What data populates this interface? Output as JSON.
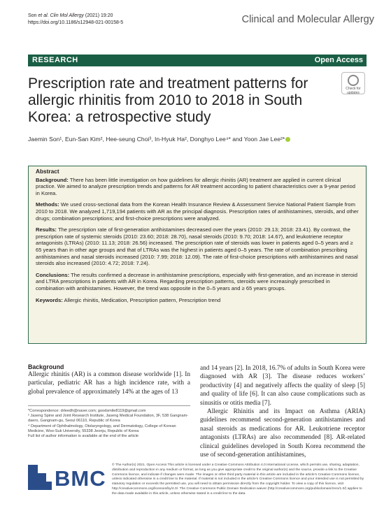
{
  "header": {
    "citation_line1_prefix": "Son ",
    "citation_line1_journal": "et al. Clin Mol Allergy",
    "citation_line1_year": "(2021) 19:20",
    "citation_line2": "https://doi.org/10.1186/s12948-021-00158-5",
    "journal_name": "Clinical and Molecular Allergy"
  },
  "bar": {
    "left": "RESEARCH",
    "right": "Open Access"
  },
  "badge": {
    "line1": "Check for",
    "line2": "updates"
  },
  "title": "Prescription rate and treatment patterns for allergic rhinitis from 2010 to 2018 in South Korea: a retrospective study",
  "authors": {
    "text": "Jaemin Son¹, Eun-San Kim², Hee-seung Choi³, In-Hyuk Ha², Donghyo Lee⁴* and Yoon Jae Lee²*"
  },
  "abstract": {
    "heading": "Abstract",
    "sections": [
      {
        "label": "Background:",
        "text": " There has been little investigation on how guidelines for allergic rhinitis (AR) treatment are applied in current clinical practice. We aimed to analyze prescription trends and patterns for AR treatment according to patient characteristics over a 9-year period in Korea."
      },
      {
        "label": "Methods:",
        "text": " We used cross-sectional data from the Korean Health Insurance Review & Assessment Service National Patient Sample from 2010 to 2018. We analyzed 1,719,194 patients with AR as the principal diagnosis. Prescription rates of antihistamines, steroids, and other drugs; combination prescriptions; and first-choice prescriptions were analyzed."
      },
      {
        "label": "Results:",
        "text": " The prescription rate of first-generation antihistamines decreased over the years (2010: 29.13; 2018: 23.41). By contrast, the prescription rate of systemic steroids (2010: 23.60; 2018: 28.70), nasal steroids (2010: 9.70; 2018: 14.67), and leukotriene receptor antagonists (LTRAs) (2010: 11.13; 2018: 26.56) increased. The prescription rate of steroids was lower in patients aged 0–5 years and ≥ 65 years than in other age groups and that of LTRAs was the highest in patients aged 0–5 years. The rate of combination prescribing antihistamines and nasal steroids increased (2010: 7.99; 2018: 12.09). The rate of first-choice prescriptions with antihistamines and nasal steroids also increased (2010: 4.72; 2018: 7.24)."
      },
      {
        "label": "Conclusions:",
        "text": " The results confirmed a decrease in antihistamine prescriptions, especially with first-generation, and an increase in steroid and LTRA prescriptions in patients with AR in Korea. Regarding prescription patterns, steroids were increasingly prescribed in combination with antihistamines. However, the trend was opposite in the 0–5 years and ≥ 65 years groups."
      },
      {
        "label": "Keywords:",
        "text": " Allergic rhinitis, Medication, Prescription pattern, Prescription trend"
      }
    ]
  },
  "body": {
    "background_heading": "Background",
    "col1_text": "Allergic rhinitis (AR) is a common disease worldwide [1]. In particular, pediatric AR has a high incidence rate, with a global prevalence of approximately 14% at the ages of 13",
    "col2_p1": "and 14 years [2]. In 2018, 16.7% of adults in South Korea were diagnosed with AR [3]. The disease reduces workers’ productivity [4] and negatively affects the quality of sleep [5] and quality of life [6]. It can also cause complications such as sinusitis or otitis media [7].",
    "col2_p2": "Allergic Rhinitis and its Impact on Asthma (ARIA) guidelines recommend second-generation antihistamines and nasal steroids as medications for AR. Leukotriene receptor antagonists (LTRAs) are also recommended [8]. AR-related clinical guidelines developed in South Korea recommend the use of second-generation antihistamines,"
  },
  "footnotes": {
    "correspondence": "*Correspondence: drleedh@naver.com; goodsmile8119@gmail.com",
    "affil2": "² Jaseng Spine and Joint Research Institute, Jaseng Medical Foundation, 3F, 538 Gangnam- daero, Gangnam-gu, Seoul 06110, Republic of Korea",
    "affil4": "⁴ Department of Ophthalmology, Otolaryngology, and Dermatology, College of Korean Medicine, Woo-Suk University, 55338 Jeonju, Republic of Korea",
    "full_list": "Full list of author information is available at the end of the article"
  },
  "publisher": {
    "logo_text": "BMC"
  },
  "license": "© The Author(s) 2021. Open Access This article is licensed under a Creative Commons Attribution 4.0 International License, which permits use, sharing, adaptation, distribution and reproduction in any medium or format, as long as you give appropriate credit to the original author(s) and the source, provide a link to the Creative Commons licence, and indicate if changes were made. The images or other third party material in this article are included in the article’s Creative Commons licence, unless indicated otherwise in a credit line to the material. If material is not included in the article’s Creative Commons licence and your intended use is not permitted by statutory regulation or exceeds the permitted use, you will need to obtain permission directly from the copyright holder. To view a copy of this licence, visit http://creativecommons.org/licenses/by/4.0/. The Creative Commons Public Domain Dedication waiver (http://creativecommons.org/publicdomain/zero/1.0/) applies to the data made available in this article, unless otherwise stated in a credit line to the data.",
  "colors": {
    "research_bar": "#1a5e45",
    "abstract_bg": "#f5f3e4",
    "bmc_blue": "#2a4d8a"
  }
}
